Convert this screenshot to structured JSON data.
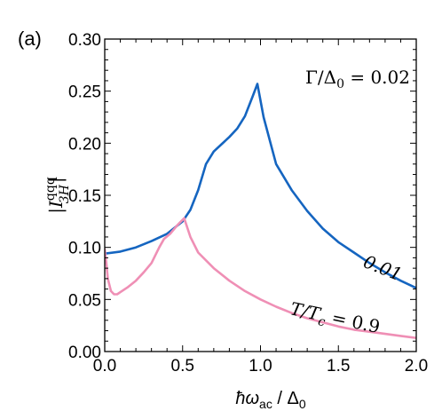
{
  "panel_label": "(a)",
  "chart_data": {
    "type": "line",
    "xlabel_parts": {
      "hbar_omega": "ħω",
      "sub": "ac",
      "sep": " / ",
      "delta": "Δ",
      "delta_sub": "0"
    },
    "ylabel_parts": {
      "open": "|",
      "I": "I",
      "sup": "qqq",
      "sub": "3H",
      "close": "|"
    },
    "annotation": {
      "lhs": "Γ/Δ",
      "lhs_sub": "0",
      "rhs": " = 0.02"
    },
    "xlim": [
      0,
      2.0
    ],
    "ylim": [
      0,
      0.3
    ],
    "xticks": [
      "0.0",
      "0.5",
      "1.0",
      "1.5",
      "2.0"
    ],
    "yticks": [
      "0.00",
      "0.05",
      "0.10",
      "0.15",
      "0.20",
      "0.25",
      "0.30"
    ],
    "grid": false,
    "series": [
      {
        "name": "0.01",
        "color": "#1565c0",
        "x": [
          0.0,
          0.1,
          0.2,
          0.3,
          0.4,
          0.5,
          0.55,
          0.6,
          0.65,
          0.7,
          0.75,
          0.8,
          0.85,
          0.9,
          0.95,
          0.98,
          1.02,
          1.1,
          1.2,
          1.3,
          1.4,
          1.5,
          1.6,
          1.7,
          1.8,
          1.9,
          2.0
        ],
        "y": [
          0.094,
          0.096,
          0.1,
          0.106,
          0.113,
          0.125,
          0.136,
          0.155,
          0.18,
          0.192,
          0.199,
          0.206,
          0.214,
          0.226,
          0.245,
          0.257,
          0.225,
          0.18,
          0.155,
          0.135,
          0.118,
          0.105,
          0.095,
          0.085,
          0.076,
          0.068,
          0.061
        ]
      },
      {
        "name": "T/T_c = 0.9",
        "color": "#ef8fb5",
        "x": [
          0.0,
          0.01,
          0.02,
          0.04,
          0.06,
          0.08,
          0.1,
          0.15,
          0.2,
          0.25,
          0.3,
          0.35,
          0.38,
          0.42,
          0.47,
          0.51,
          0.55,
          0.6,
          0.7,
          0.8,
          0.9,
          1.0,
          1.1,
          1.2,
          1.3,
          1.4,
          1.5,
          1.6,
          1.7,
          1.8,
          1.9,
          2.0
        ],
        "y": [
          0.098,
          0.085,
          0.07,
          0.058,
          0.055,
          0.055,
          0.057,
          0.062,
          0.068,
          0.076,
          0.085,
          0.1,
          0.108,
          0.113,
          0.122,
          0.128,
          0.11,
          0.095,
          0.08,
          0.068,
          0.058,
          0.05,
          0.043,
          0.037,
          0.032,
          0.028,
          0.024,
          0.021,
          0.019,
          0.017,
          0.015,
          0.013
        ]
      }
    ],
    "labels": {
      "blue": "0.01",
      "pink_lhs": "T/T",
      "pink_sub": "c",
      "pink_rhs": " = 0.9"
    }
  }
}
